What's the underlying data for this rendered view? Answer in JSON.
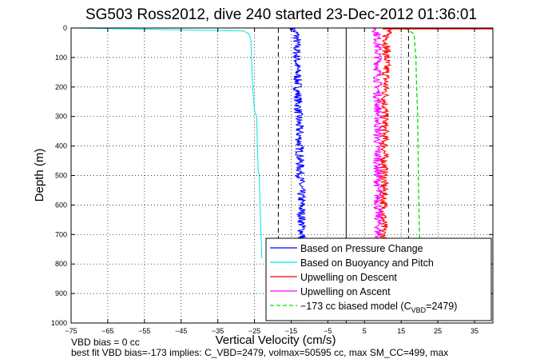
{
  "chart_data": {
    "type": "line",
    "title": "SG503 Ross2012, dive 240 started 23-Dec-2012 01:36:01",
    "xlabel": "Vertical Velocity (cm/s)",
    "ylabel": "Depth (m)",
    "xlim": [
      -75,
      40
    ],
    "ylim": [
      0,
      1000
    ],
    "y_reversed": true,
    "x_ticks": [
      -75,
      -65,
      -55,
      -45,
      -35,
      -25,
      -15,
      -5,
      5,
      15,
      25,
      35
    ],
    "y_ticks": [
      0,
      100,
      200,
      300,
      400,
      500,
      600,
      700,
      800,
      900,
      1000
    ],
    "grid": "dotted",
    "legend_position": "bottom-right",
    "series": [
      {
        "name": "Based on Pressure Change",
        "color": "#0000ff",
        "style": "solid",
        "noisy": true,
        "depth": [
          0,
          20,
          60,
          100,
          150,
          200,
          300,
          400,
          500,
          600,
          700,
          790
        ],
        "values": [
          -15,
          -13.5,
          -13.5,
          -13.5,
          -13.3,
          -13.2,
          -13.0,
          -12.7,
          -12.5,
          -12.2,
          -12.0,
          -12.0
        ]
      },
      {
        "name": "Based on Buoyancy and Pitch",
        "color": "#00e5e5",
        "style": "solid",
        "noisy": false,
        "depth": [
          0,
          10,
          20,
          40,
          100,
          200,
          280,
          300,
          400,
          480,
          500,
          600,
          700,
          775,
          780
        ],
        "values": [
          -75,
          -28,
          -26.5,
          -26,
          -25.8,
          -25.5,
          -25,
          -24.4,
          -24.2,
          -24,
          -23.7,
          -23.5,
          -23.2,
          -23,
          -23
        ]
      },
      {
        "name": "Upwelling on Descent",
        "color": "#ff0000",
        "style": "solid",
        "noisy": true,
        "depth": [
          0,
          20,
          100,
          200,
          300,
          400,
          500,
          600,
          700,
          790
        ],
        "values": [
          12,
          11,
          11,
          10.7,
          10.5,
          10.4,
          10.3,
          10.2,
          10.1,
          10.1
        ]
      },
      {
        "name": "Upwelling on Ascent",
        "color": "#ff00ff",
        "style": "solid",
        "noisy": true,
        "depth": [
          0,
          20,
          100,
          200,
          300,
          400,
          500,
          600,
          700,
          790
        ],
        "values": [
          8,
          8.5,
          8.7,
          8.6,
          8.7,
          8.6,
          8.6,
          8.7,
          8.8,
          8.8
        ]
      },
      {
        "name": "−173 cc biased model (C",
        "name_sub": "VBD",
        "name_tail": "=2479)",
        "color": "#00dd00",
        "style": "dashed",
        "noisy": false,
        "depth": [
          0,
          20,
          100,
          200,
          300,
          400,
          500,
          600,
          700,
          790
        ],
        "values": [
          16,
          18.5,
          19,
          19.2,
          19.5,
          19.6,
          19.7,
          19.8,
          20,
          20
        ]
      }
    ],
    "surface_spike": {
      "color": "#ff0000",
      "depth": 0,
      "value": 40
    },
    "vertical_reference_lines": [
      {
        "x": 0,
        "style": "solid",
        "color": "#000000"
      },
      {
        "x": -18.5,
        "style": "dashed",
        "color": "#000000"
      },
      {
        "x": 17,
        "style": "dashed",
        "color": "#000000"
      }
    ]
  },
  "footnotes": {
    "line1": "VBD bias = 0 cc",
    "line2": "best fit VBD bias=-173 implies: C_VBD=2479, volmax=50595 cc, max SM_CC=499, max"
  }
}
